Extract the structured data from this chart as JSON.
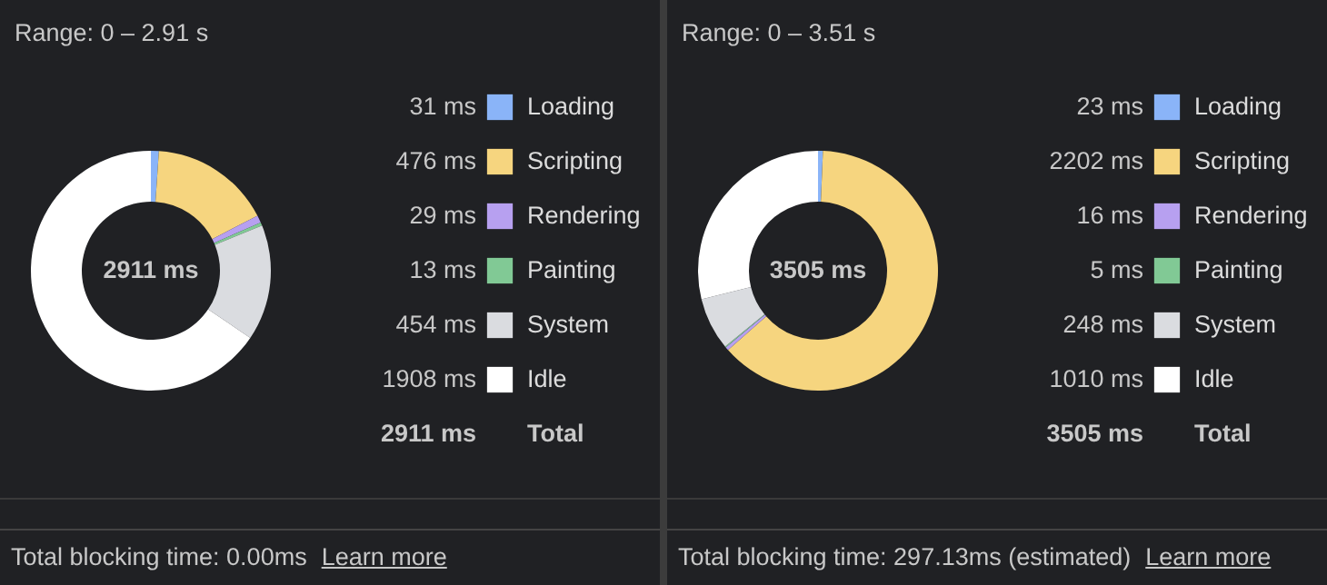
{
  "chart_data": [
    {
      "type": "donut",
      "title": "Range: 0 – 2.91 s",
      "categories": [
        "Loading",
        "Scripting",
        "Rendering",
        "Painting",
        "System",
        "Idle"
      ],
      "values": [
        31,
        476,
        29,
        13,
        454,
        1908
      ],
      "colors": [
        "#8ab4f8",
        "#f6d57f",
        "#b7a0f0",
        "#81c995",
        "#dadce0",
        "#ffffff"
      ],
      "value_labels": [
        "31 ms",
        "476 ms",
        "29 ms",
        "13 ms",
        "454 ms",
        "1908 ms"
      ],
      "legend": "right",
      "annotations": [
        "2911 ms",
        "2911 ms",
        "Total",
        "Total blocking time: 0.00ms",
        "Learn more"
      ]
    },
    {
      "type": "donut",
      "title": "Range: 0 – 3.51 s",
      "categories": [
        "Loading",
        "Scripting",
        "Rendering",
        "Painting",
        "System",
        "Idle"
      ],
      "values": [
        23,
        2202,
        16,
        5,
        248,
        1010
      ],
      "colors": [
        "#8ab4f8",
        "#f6d57f",
        "#b7a0f0",
        "#81c995",
        "#dadce0",
        "#ffffff"
      ],
      "value_labels": [
        "23 ms",
        "2202 ms",
        "16 ms",
        "5 ms",
        "248 ms",
        "1010 ms"
      ],
      "legend": "right",
      "annotations": [
        "3505 ms",
        "3505 ms",
        "Total",
        "Total blocking time: 297.13ms (estimated)",
        "Learn more"
      ]
    }
  ]
}
